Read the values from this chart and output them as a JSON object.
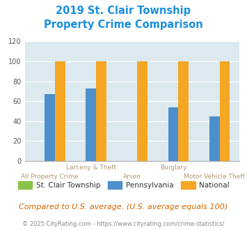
{
  "title_line1": "2019 St. Clair Township",
  "title_line2": "Property Crime Comparison",
  "categories": [
    "All Property Crime",
    "Larceny & Theft",
    "Arson",
    "Burglary",
    "Motor Vehicle Theft"
  ],
  "st_clair": [
    0,
    0,
    0,
    0,
    0
  ],
  "pennsylvania": [
    67,
    73,
    0,
    54,
    45
  ],
  "national": [
    100,
    100,
    100,
    100,
    100
  ],
  "colors": {
    "st_clair": "#8bc34a",
    "pennsylvania": "#4d8fcc",
    "national": "#f5a623"
  },
  "ylim": [
    0,
    120
  ],
  "yticks": [
    0,
    20,
    40,
    60,
    80,
    100,
    120
  ],
  "background_color": "#dce9ef",
  "title_color": "#1a8fe0",
  "xlabel_color_top": "#b09878",
  "xlabel_color_bottom": "#b09878",
  "legend_labels": [
    "St. Clair Township",
    "Pennsylvania",
    "National"
  ],
  "footer_text": "Compared to U.S. average. (U.S. average equals 100)",
  "copyright_text": "© 2025 CityRating.com - https://www.cityrating.com/crime-statistics/",
  "title_fontsize": 10.5,
  "footer_fontsize": 8.0,
  "copyright_fontsize": 6.0,
  "legend_fontsize": 7.5
}
